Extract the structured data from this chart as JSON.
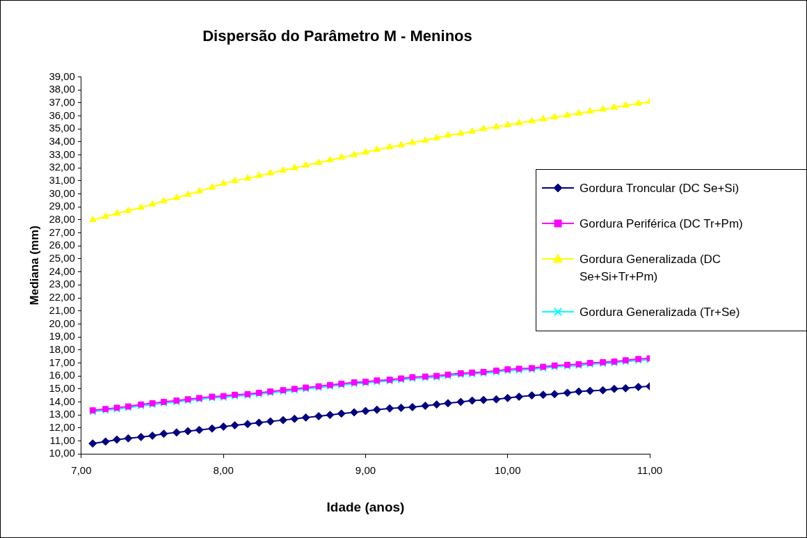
{
  "chart_data": {
    "type": "line",
    "title": "Dispersão do Parâmetro M - Meninos",
    "xlabel": "Idade (anos)",
    "ylabel": "Mediana (mm)",
    "x": [
      7.08,
      7.17,
      7.25,
      7.33,
      7.42,
      7.5,
      7.58,
      7.67,
      7.75,
      7.83,
      7.92,
      8,
      8.08,
      8.17,
      8.25,
      8.33,
      8.42,
      8.5,
      8.58,
      8.67,
      8.75,
      8.83,
      8.92,
      9,
      9.08,
      9.17,
      9.25,
      9.33,
      9.42,
      9.5,
      9.58,
      9.67,
      9.75,
      9.83,
      9.92,
      10,
      10.08,
      10.17,
      10.25,
      10.33,
      10.42,
      10.5,
      10.58,
      10.67,
      10.75,
      10.83,
      10.92,
      11
    ],
    "series": [
      {
        "name": "Gordura Troncular (DC Se+Si)",
        "color": "#000080",
        "marker": "diamond",
        "values": [
          10.8,
          10.95,
          11.1,
          11.2,
          11.3,
          11.4,
          11.55,
          11.65,
          11.75,
          11.85,
          11.95,
          12.1,
          12.2,
          12.3,
          12.4,
          12.5,
          12.6,
          12.7,
          12.8,
          12.9,
          13.0,
          13.1,
          13.2,
          13.3,
          13.4,
          13.5,
          13.55,
          13.6,
          13.7,
          13.8,
          13.9,
          14.0,
          14.1,
          14.15,
          14.2,
          14.3,
          14.4,
          14.5,
          14.55,
          14.6,
          14.7,
          14.8,
          14.85,
          14.9,
          15.0,
          15.05,
          15.15,
          15.2
        ]
      },
      {
        "name": "Gordura Periférica (DC Tr+Pm)",
        "color": "#ff00ff",
        "marker": "square",
        "values": [
          13.35,
          13.45,
          13.55,
          13.65,
          13.8,
          13.9,
          14.0,
          14.1,
          14.2,
          14.3,
          14.4,
          14.45,
          14.55,
          14.6,
          14.7,
          14.8,
          14.9,
          15.0,
          15.1,
          15.2,
          15.3,
          15.4,
          15.5,
          15.55,
          15.65,
          15.7,
          15.8,
          15.9,
          15.95,
          16.0,
          16.1,
          16.2,
          16.25,
          16.3,
          16.4,
          16.5,
          16.55,
          16.6,
          16.7,
          16.8,
          16.85,
          16.9,
          17.0,
          17.05,
          17.1,
          17.2,
          17.3,
          17.35
        ]
      },
      {
        "name": "Gordura Generalizada (DC Se+Si+Tr+Pm)",
        "color": "#ffff00",
        "marker": "triangle",
        "values": [
          28.0,
          28.25,
          28.5,
          28.7,
          28.95,
          29.2,
          29.45,
          29.7,
          29.95,
          30.2,
          30.5,
          30.8,
          31.0,
          31.2,
          31.4,
          31.6,
          31.8,
          32.0,
          32.2,
          32.4,
          32.6,
          32.8,
          33.0,
          33.2,
          33.4,
          33.6,
          33.75,
          33.95,
          34.1,
          34.3,
          34.5,
          34.65,
          34.8,
          35.0,
          35.15,
          35.3,
          35.45,
          35.6,
          35.75,
          35.9,
          36.05,
          36.2,
          36.35,
          36.5,
          36.65,
          36.8,
          36.95,
          37.1
        ]
      },
      {
        "name": "Gordura Generalizada (Tr+Se)",
        "color": "#00ffff",
        "marker": "cross",
        "values": [
          13.25,
          13.35,
          13.45,
          13.55,
          13.7,
          13.8,
          13.9,
          14.0,
          14.1,
          14.2,
          14.3,
          14.35,
          14.45,
          14.5,
          14.6,
          14.7,
          14.8,
          14.9,
          15.0,
          15.1,
          15.2,
          15.3,
          15.4,
          15.45,
          15.55,
          15.6,
          15.7,
          15.8,
          15.85,
          15.9,
          16.0,
          16.1,
          16.15,
          16.2,
          16.3,
          16.4,
          16.45,
          16.5,
          16.6,
          16.7,
          16.75,
          16.8,
          16.9,
          16.95,
          17.0,
          17.1,
          17.2,
          17.25
        ]
      }
    ],
    "xlim": [
      7,
      11
    ],
    "xticks": [
      {
        "value": 7,
        "label": "7,00"
      },
      {
        "value": 8,
        "label": "8,00"
      },
      {
        "value": 9,
        "label": "9,00"
      },
      {
        "value": 10,
        "label": "10,00"
      },
      {
        "value": 11,
        "label": "11,00"
      }
    ],
    "ylim": [
      10,
      39
    ],
    "yticks": [
      {
        "value": 10,
        "label": "10,00"
      },
      {
        "value": 11,
        "label": "11,00"
      },
      {
        "value": 12,
        "label": "12,00"
      },
      {
        "value": 13,
        "label": "13,00"
      },
      {
        "value": 14,
        "label": "14,00"
      },
      {
        "value": 15,
        "label": "15,00"
      },
      {
        "value": 16,
        "label": "16,00"
      },
      {
        "value": 17,
        "label": "17,00"
      },
      {
        "value": 18,
        "label": "18,00"
      },
      {
        "value": 19,
        "label": "19,00"
      },
      {
        "value": 20,
        "label": "20,00"
      },
      {
        "value": 21,
        "label": "21,00"
      },
      {
        "value": 22,
        "label": "22,00"
      },
      {
        "value": 23,
        "label": "23,00"
      },
      {
        "value": 24,
        "label": "24,00"
      },
      {
        "value": 25,
        "label": "25,00"
      },
      {
        "value": 26,
        "label": "26,00"
      },
      {
        "value": 27,
        "label": "27,00"
      },
      {
        "value": 28,
        "label": "28,00"
      },
      {
        "value": 29,
        "label": "29,00"
      },
      {
        "value": 30,
        "label": "30,00"
      },
      {
        "value": 31,
        "label": "31,00"
      },
      {
        "value": 32,
        "label": "32,00"
      },
      {
        "value": 33,
        "label": "33,00"
      },
      {
        "value": 34,
        "label": "34,00"
      },
      {
        "value": 35,
        "label": "35,00"
      },
      {
        "value": 36,
        "label": "36,00"
      },
      {
        "value": 37,
        "label": "37,00"
      },
      {
        "value": 38,
        "label": "38,00"
      },
      {
        "value": 39,
        "label": "39,00"
      }
    ],
    "grid": false,
    "legend": "right"
  }
}
